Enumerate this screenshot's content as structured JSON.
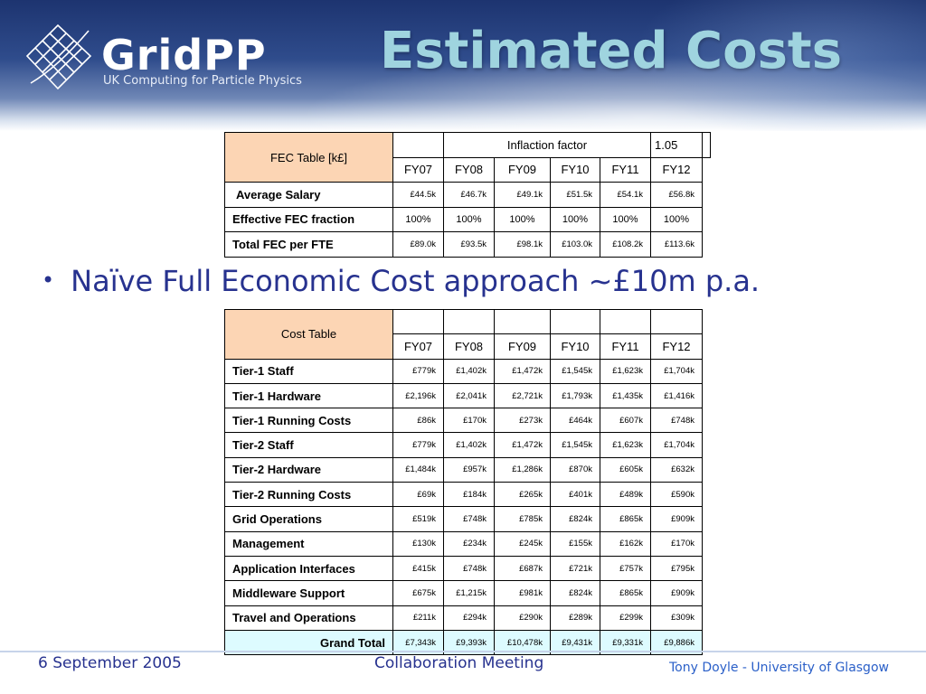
{
  "header": {
    "logo_text": "GridPP",
    "logo_sub": "UK Computing for Particle Physics",
    "title": "Estimated Costs"
  },
  "fec_table": {
    "title": "FEC Table   [k£]",
    "inflation_label": "Inflaction factor",
    "inflation_value": "1.05",
    "years": [
      "FY07",
      "FY08",
      "FY09",
      "FY10",
      "FY11",
      "FY12"
    ],
    "rows": [
      {
        "label": "Average Salary",
        "values": [
          "£44.5k",
          "£46.7k",
          "£49.1k",
          "£51.5k",
          "£54.1k",
          "£56.8k"
        ]
      },
      {
        "label": "Effective FEC fraction",
        "values": [
          "100%",
          "100%",
          "100%",
          "100%",
          "100%",
          "100%"
        ]
      },
      {
        "label": "Total FEC per FTE",
        "values": [
          "£89.0k",
          "£93.5k",
          "£98.1k",
          "£103.0k",
          "£108.2k",
          "£113.6k"
        ]
      }
    ]
  },
  "bullet": {
    "text": "Naïve Full Economic Cost approach ~£10m p.a."
  },
  "cost_table": {
    "title": "Cost  Table",
    "years": [
      "FY07",
      "FY08",
      "FY09",
      "FY10",
      "FY11",
      "FY12"
    ],
    "rows": [
      {
        "label": "Tier-1 Staff",
        "values": [
          "£779k",
          "£1,402k",
          "£1,472k",
          "£1,545k",
          "£1,623k",
          "£1,704k"
        ]
      },
      {
        "label": "Tier-1 Hardware",
        "values": [
          "£2,196k",
          "£2,041k",
          "£2,721k",
          "£1,793k",
          "£1,435k",
          "£1,416k"
        ]
      },
      {
        "label": "Tier-1 Running Costs",
        "values": [
          "£86k",
          "£170k",
          "£273k",
          "£464k",
          "£607k",
          "£748k"
        ]
      },
      {
        "label": "Tier-2 Staff",
        "values": [
          "£779k",
          "£1,402k",
          "£1,472k",
          "£1,545k",
          "£1,623k",
          "£1,704k"
        ]
      },
      {
        "label": "Tier-2 Hardware",
        "values": [
          "£1,484k",
          "£957k",
          "£1,286k",
          "£870k",
          "£605k",
          "£632k"
        ]
      },
      {
        "label": "Tier-2 Running Costs",
        "values": [
          "£69k",
          "£184k",
          "£265k",
          "£401k",
          "£489k",
          "£590k"
        ]
      },
      {
        "label": "Grid Operations",
        "values": [
          "£519k",
          "£748k",
          "£785k",
          "£824k",
          "£865k",
          "£909k"
        ]
      },
      {
        "label": "Management",
        "values": [
          "£130k",
          "£234k",
          "£245k",
          "£155k",
          "£162k",
          "£170k"
        ]
      },
      {
        "label": "Application Interfaces",
        "values": [
          "£415k",
          "£748k",
          "£687k",
          "£721k",
          "£757k",
          "£795k"
        ]
      },
      {
        "label": "Middleware Support",
        "values": [
          "£675k",
          "£1,215k",
          "£981k",
          "£824k",
          "£865k",
          "£909k"
        ]
      },
      {
        "label": "Travel and Operations",
        "values": [
          "£211k",
          "£294k",
          "£290k",
          "£289k",
          "£299k",
          "£309k"
        ]
      }
    ],
    "grand_total": {
      "label": "Grand Total",
      "values": [
        "£7,343k",
        "£9,393k",
        "£10,478k",
        "£9,431k",
        "£9,331k",
        "£9,886k"
      ]
    }
  },
  "footer": {
    "date": "6 September 2005",
    "meeting": "Collaboration Meeting",
    "author": "Tony Doyle - University of Glasgow"
  },
  "colors": {
    "title": "#9fd4df",
    "header_dark": "#1d3470",
    "table_corner": "#fcd5b4",
    "grand_total": "#ddfbff",
    "bullet_text": "#27328f"
  }
}
